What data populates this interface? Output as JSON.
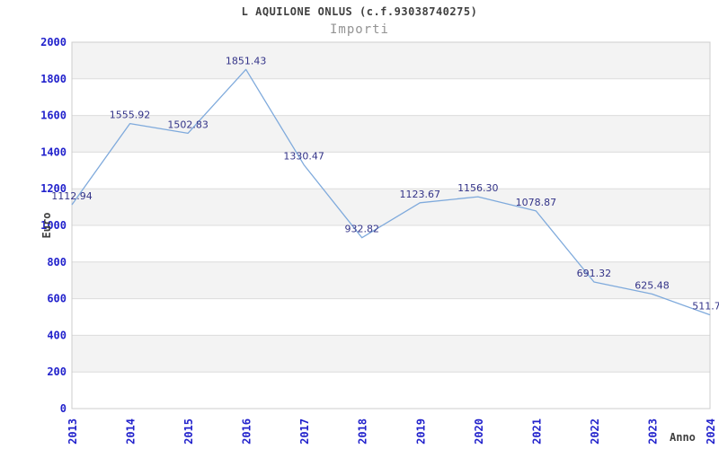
{
  "header": {
    "title": "L AQUILONE ONLUS (c.f.93038740275)",
    "subtitle": "Importi"
  },
  "chart_data": {
    "type": "line",
    "title": "L AQUILONE ONLUS (c.f.93038740275)",
    "subtitle": "Importi",
    "xlabel": "Anno",
    "ylabel": "Euro",
    "categories": [
      "2013",
      "2014",
      "2015",
      "2016",
      "2017",
      "2018",
      "2019",
      "2020",
      "2021",
      "2022",
      "2023",
      "2024"
    ],
    "values": [
      1112.94,
      1555.92,
      1502.83,
      1851.43,
      1330.47,
      932.82,
      1123.67,
      1156.3,
      1078.87,
      691.32,
      625.48,
      511.7
    ],
    "point_labels": [
      "1112.94",
      "1555.92",
      "1502.83",
      "1851.43",
      "1330.47",
      "932.82",
      "1123.67",
      "1156.30",
      "1078.87",
      "691.32",
      "625.48",
      "511.7"
    ],
    "ylim": [
      0,
      2000
    ],
    "ytick_step": 200,
    "grid": "horizontal gridlines with alternating shaded bands",
    "legend": "none",
    "colors": {
      "line": "#7faadc",
      "tick_label": "#2222cc",
      "point_label": "#333388",
      "band_shaded": "#f3f3f3",
      "band_plain": "#ffffff",
      "grid_line": "#dcdcdc",
      "plot_border": "#cccccc",
      "title": "#404040",
      "subtitle": "#949494",
      "axis_title": "#404040"
    }
  }
}
